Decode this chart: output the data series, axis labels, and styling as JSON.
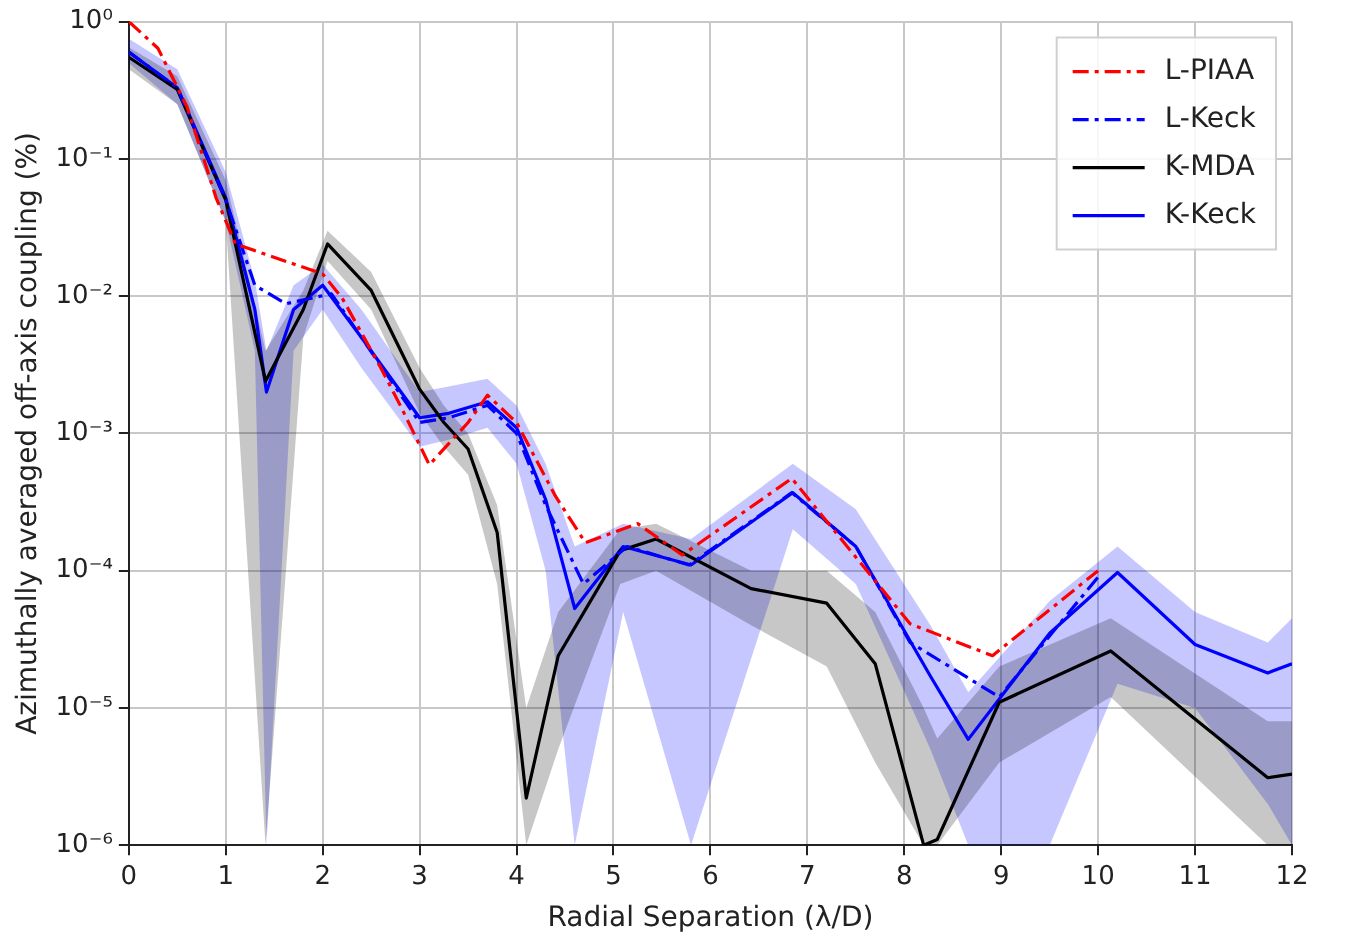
{
  "chart_data": {
    "type": "line",
    "xlabel": "Radial Separation (λ/D)",
    "ylabel": "Azimuthally averaged off-axis coupling (%)",
    "xlim": [
      0,
      12
    ],
    "xticks": [
      0,
      1,
      2,
      3,
      4,
      5,
      6,
      7,
      8,
      9,
      10,
      11,
      12
    ],
    "ylim": [
      1e-06,
      1
    ],
    "yticks": [
      {
        "value": 1e-06,
        "label": "10⁻⁶"
      },
      {
        "value": 1e-05,
        "label": "10⁻⁵"
      },
      {
        "value": 0.0001,
        "label": "10⁻⁴"
      },
      {
        "value": 0.001,
        "label": "10⁻³"
      },
      {
        "value": 0.01,
        "label": "10⁻²"
      },
      {
        "value": 0.1,
        "label": "10⁻¹"
      },
      {
        "value": 1,
        "label": "10⁰"
      }
    ],
    "log": "y",
    "grid": true,
    "legend": "top right",
    "marker": "none",
    "series": [
      {
        "name": "L-PIAA",
        "color": "#ff0000",
        "line_style": "dashdot",
        "x": [
          0,
          0.3,
          0.6,
          0.9,
          1.1,
          2,
          2.2,
          2.6,
          2.8,
          3.1,
          3.5,
          3.7,
          4,
          4.4,
          4.71,
          5.25,
          5.71,
          6.84,
          8.06,
          8.91,
          10
        ],
        "values": [
          1,
          0.64,
          0.24,
          0.052,
          0.024,
          0.0145,
          0.0097,
          0.003,
          0.0016,
          0.00059,
          0.0012,
          0.0019,
          0.0012,
          0.00035,
          0.00016,
          0.00022,
          0.00013,
          0.00047,
          4.1e-05,
          2.4e-05,
          0.0001
        ]
      },
      {
        "name": "L-Keck",
        "color": "#0000ff",
        "line_style": "dashdot",
        "x": [
          0,
          0.5,
          1,
          1.3,
          1.62,
          2.09,
          2.4,
          3,
          3.3,
          3.7,
          4,
          4.3,
          4.69,
          5.14,
          5.78,
          6.84,
          7.5,
          8.06,
          8.98,
          10
        ],
        "values": [
          0.6,
          0.33,
          0.05,
          0.012,
          0.0088,
          0.0104,
          0.005,
          0.0012,
          0.0013,
          0.0016,
          0.001,
          0.0003,
          8e-05,
          0.00015,
          0.00011,
          0.00037,
          0.00015,
          3e-05,
          1.2e-05,
          9e-05
        ]
      },
      {
        "name": "K-MDA",
        "color": "#000000",
        "line_style": "solid",
        "x": [
          0,
          0.5,
          1,
          1.41,
          1.8,
          2.05,
          2.5,
          3,
          3.25,
          3.5,
          3.8,
          4.1,
          4.43,
          5.07,
          5.44,
          6.42,
          7.2,
          7.7,
          8.2,
          8.34,
          8.98,
          10.13,
          11.75,
          12
        ],
        "values": [
          0.55,
          0.32,
          0.05,
          0.0024,
          0.008,
          0.024,
          0.011,
          0.0021,
          0.0012,
          0.00077,
          0.00019,
          2.2e-06,
          2.4e-05,
          0.00014,
          0.00017,
          7.4e-05,
          5.8e-05,
          2.1e-05,
          1e-06,
          1.1e-06,
          1.1e-05,
          2.6e-05,
          3.1e-06,
          3.3e-06
        ],
        "upper": [
          0.65,
          0.4,
          0.07,
          0.004,
          0.011,
          0.03,
          0.015,
          0.003,
          0.0016,
          0.001,
          0.0003,
          1e-05,
          5e-05,
          0.0002,
          0.00022,
          0.0001,
          0.0001,
          5e-05,
          1e-05,
          6e-06,
          2e-05,
          4.5e-05,
          8e-06,
          8e-06
        ],
        "lower": [
          0.45,
          0.25,
          0.035,
          1e-06,
          0.005,
          0.018,
          0.008,
          0.0014,
          0.0008,
          0.0005,
          8e-05,
          1e-06,
          5e-06,
          8e-05,
          0.0001,
          4e-05,
          2e-05,
          4e-06,
          1e-06,
          1e-06,
          4e-06,
          1.2e-05,
          1e-06,
          1e-06
        ]
      },
      {
        "name": "K-Keck",
        "color": "#0000ff",
        "line_style": "solid",
        "x": [
          0,
          0.5,
          1,
          1.3,
          1.42,
          1.7,
          2,
          2.4,
          3,
          3.3,
          3.7,
          4,
          4.3,
          4.6,
          5.1,
          5.8,
          6.85,
          7.5,
          8.27,
          8.66,
          9.5,
          10.2,
          11,
          11.75,
          12
        ],
        "values": [
          0.6,
          0.33,
          0.052,
          0.008,
          0.002,
          0.008,
          0.012,
          0.005,
          0.0013,
          0.0014,
          0.0017,
          0.0011,
          0.00033,
          5.3e-05,
          0.00015,
          0.00011,
          0.00037,
          0.00015,
          1.7e-05,
          5.9e-06,
          3.5e-05,
          9.7e-05,
          2.9e-05,
          1.8e-05,
          2.1e-05
        ],
        "upper": [
          0.75,
          0.45,
          0.08,
          0.013,
          0.004,
          0.012,
          0.017,
          0.008,
          0.002,
          0.0022,
          0.0025,
          0.0016,
          0.0006,
          0.00015,
          0.00022,
          0.00017,
          0.0006,
          0.00028,
          4e-05,
          1.3e-05,
          6e-05,
          0.00015,
          5e-05,
          3e-05,
          4.5e-05
        ],
        "lower": [
          0.5,
          0.25,
          0.035,
          0.004,
          1e-06,
          0.004,
          0.008,
          0.003,
          0.0008,
          0.0009,
          0.0011,
          0.0006,
          0.0001,
          1e-06,
          5e-05,
          1e-06,
          0.0002,
          8e-05,
          5e-06,
          1e-06,
          1e-06,
          1.5e-05,
          1e-05,
          2e-06,
          1e-06
        ]
      }
    ]
  }
}
